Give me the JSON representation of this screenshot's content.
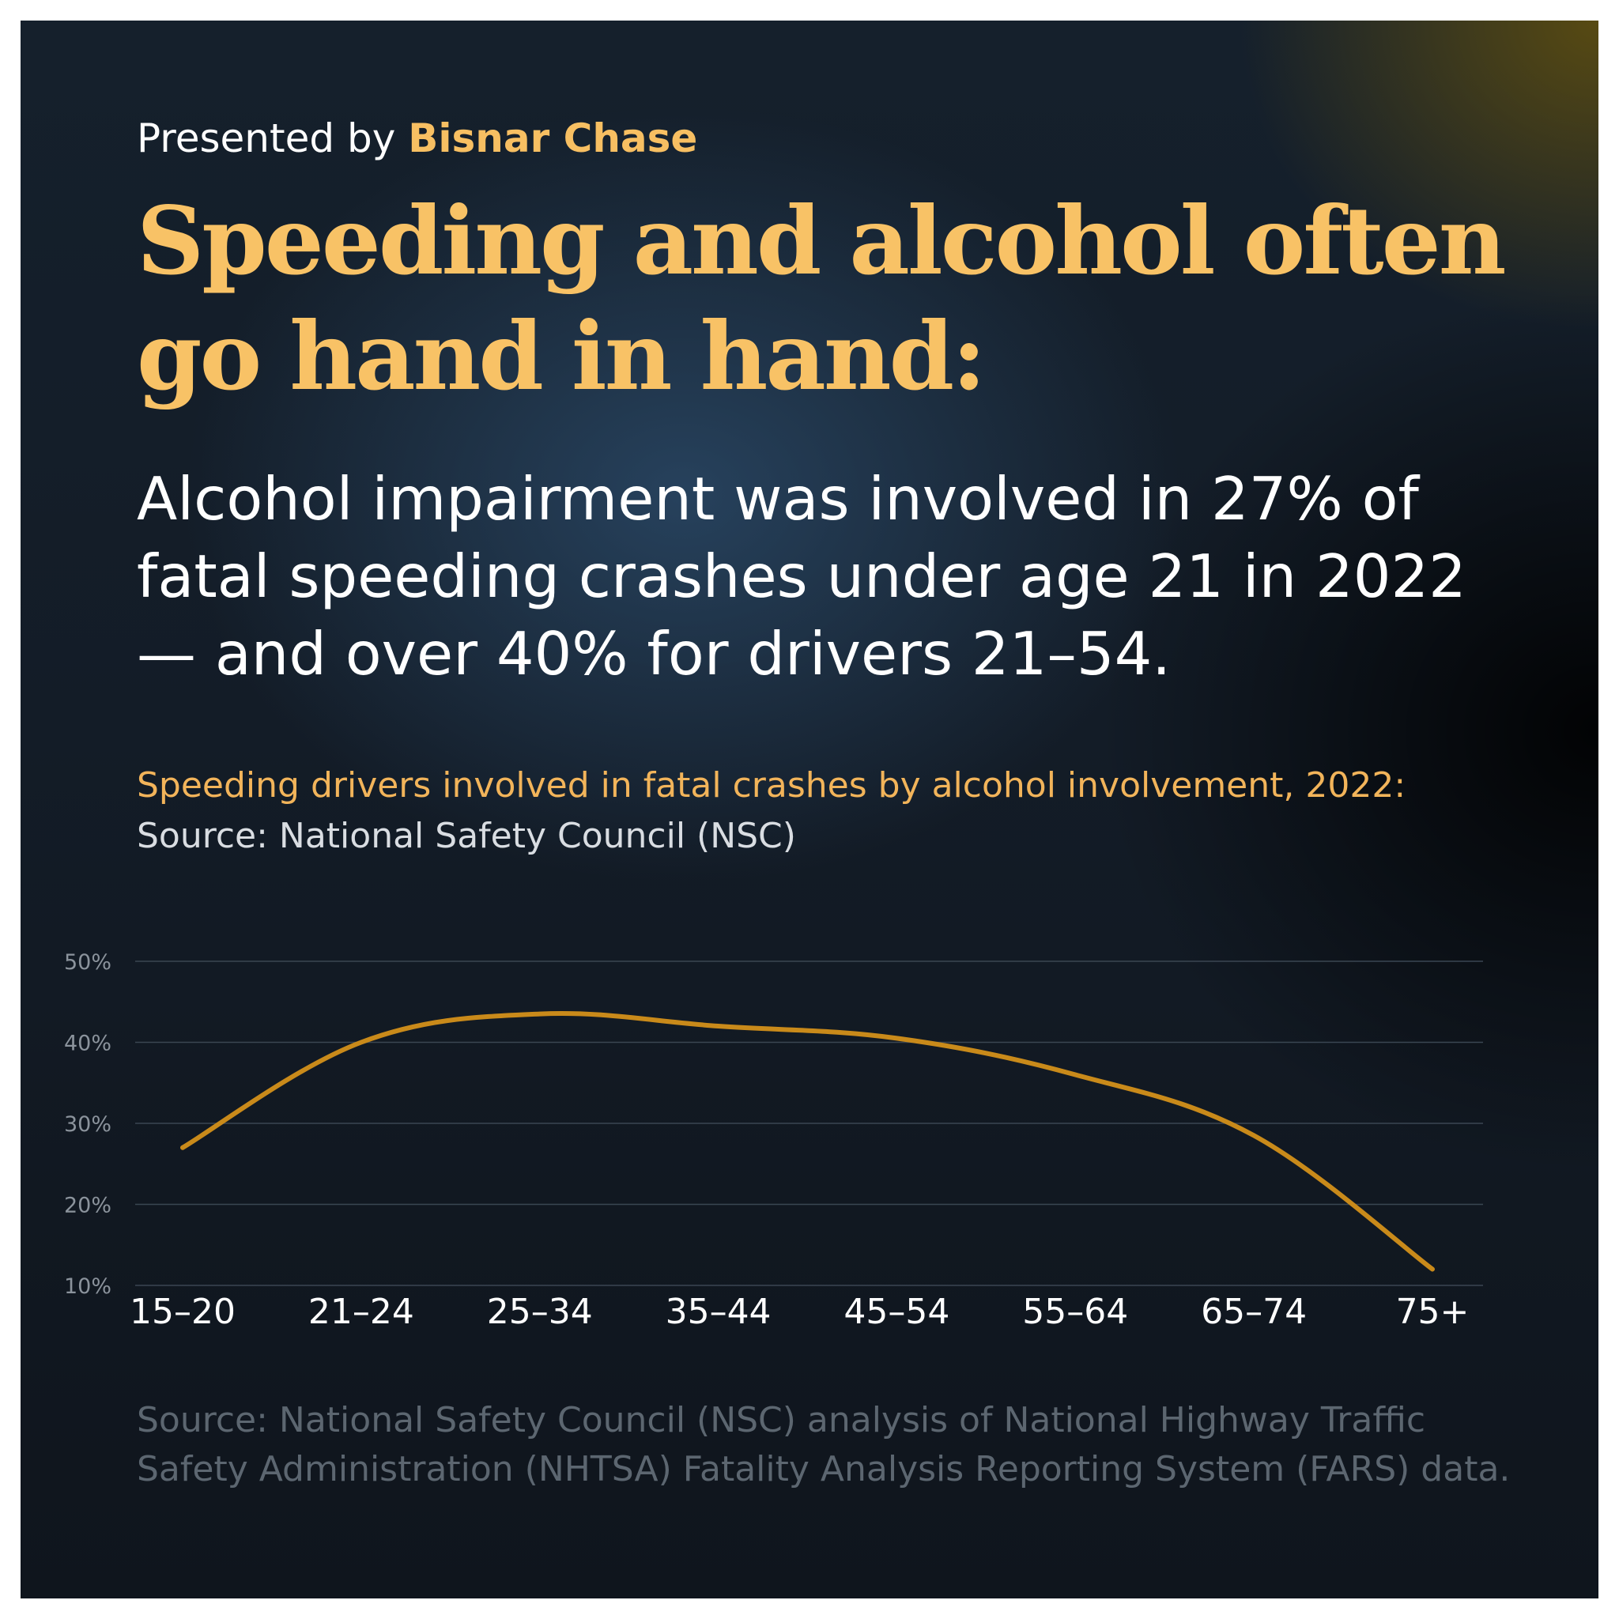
{
  "header": {
    "presented_prefix": "Presented by",
    "brand": "Bisnar Chase",
    "headline": "Speeding and alcohol often go hand in hand:",
    "subhead": "Alcohol impairment was involved in 27% of fatal speeding crashes under age 21 in 2022 — and over 40% for drivers 21–54."
  },
  "chart_caption": {
    "title": "Speeding drivers involved in fatal crashes by alcohol involvement, 2022:",
    "source": "Source: National Safety Council (NSC)"
  },
  "footer": {
    "source_note": "Source: National Safety Council (NSC) analysis of National Highway Traffic Safety Administration (NHTSA) Fatality Analysis Reporting System (FARS) data."
  },
  "colors": {
    "accent": "#f8c266",
    "line": "#c98a1a",
    "grid": "#3a4652"
  },
  "chart_data": {
    "type": "line",
    "title": "Speeding drivers involved in fatal crashes by alcohol involvement, 2022:",
    "xlabel": "",
    "ylabel": "",
    "categories": [
      "15–20",
      "21–24",
      "25–34",
      "35–44",
      "45–54",
      "55–64",
      "65–74",
      "75+"
    ],
    "series": [
      {
        "values": [
          27,
          40,
          43.5,
          42,
          40.5,
          36,
          28.5,
          12
        ]
      }
    ],
    "ylim": [
      10,
      50
    ],
    "yticks": [
      "10%",
      "20%",
      "30%",
      "40%",
      "50%"
    ],
    "ytick_values": [
      10,
      20,
      30,
      40,
      50
    ],
    "grid": true,
    "legend": "none"
  }
}
